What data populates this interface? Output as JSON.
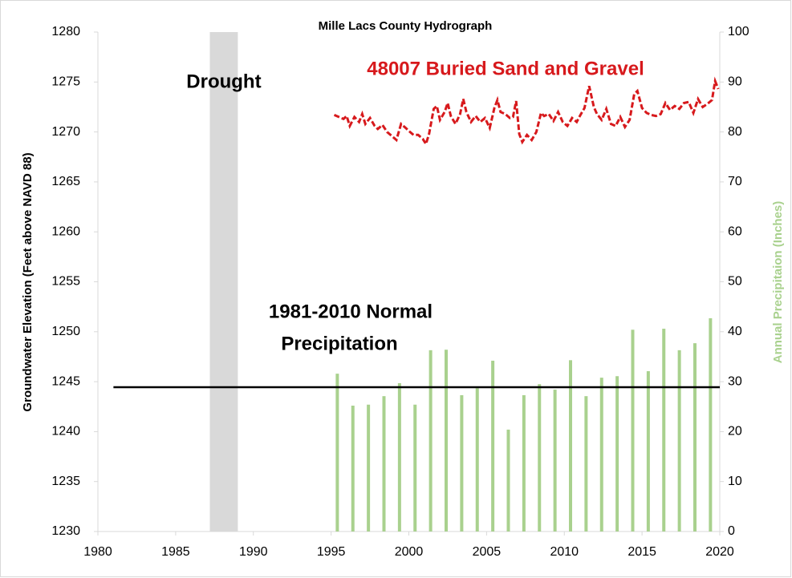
{
  "chart_data": {
    "type": "combo",
    "title": "Mille Lacs County Hydrograph",
    "ylabel": "Groundwater Elevation (Feet above NAVD 88)",
    "y2label": "Annual Precipitaion (Inches)",
    "xlim": [
      1980,
      2020
    ],
    "xticks": [
      1980,
      1985,
      1990,
      1995,
      2000,
      2005,
      2010,
      2015,
      2020
    ],
    "ylim": [
      1230,
      1280
    ],
    "yticks": [
      1230,
      1235,
      1240,
      1245,
      1250,
      1255,
      1260,
      1265,
      1270,
      1275,
      1280
    ],
    "y2lim": [
      0,
      100
    ],
    "y2ticks": [
      0,
      10,
      20,
      30,
      40,
      50,
      60,
      70,
      80,
      90,
      100
    ],
    "grid": false,
    "shaded_regions": [
      {
        "label": "Drought",
        "x": [
          1987.2,
          1989
        ],
        "color": "#d9d9d9"
      }
    ],
    "reference_lines": [
      {
        "label": [
          "1981-2010 Normal",
          "Precipitation"
        ],
        "axis": "y2",
        "value": 28.9,
        "x": [
          1981,
          2020
        ],
        "color": "#000000"
      }
    ],
    "series": [
      {
        "name": "48007 Buried Sand and Gravel",
        "type": "line",
        "dashed": true,
        "color": "#d7191c",
        "x": [
          1995.2,
          1995.5,
          1995.8,
          1996.0,
          1996.2,
          1996.5,
          1996.8,
          1997.0,
          1997.2,
          1997.5,
          1997.8,
          1998.0,
          1998.3,
          1998.6,
          1998.9,
          1999.2,
          1999.5,
          1999.8,
          2000.0,
          2000.3,
          2000.6,
          2000.9,
          2001.1,
          2001.3,
          2001.6,
          2001.8,
          2002.0,
          2002.3,
          2002.5,
          2002.7,
          2003.0,
          2003.3,
          2003.5,
          2003.7,
          2004.0,
          2004.3,
          2004.6,
          2004.9,
          2005.2,
          2005.5,
          2005.7,
          2005.9,
          2006.2,
          2006.5,
          2006.7,
          2006.9,
          2007.1,
          2007.3,
          2007.6,
          2007.9,
          2008.2,
          2008.5,
          2008.7,
          2009.0,
          2009.3,
          2009.6,
          2009.9,
          2010.2,
          2010.5,
          2010.8,
          2011.0,
          2011.3,
          2011.6,
          2011.9,
          2012.1,
          2012.4,
          2012.7,
          2013.0,
          2013.3,
          2013.6,
          2013.9,
          2014.2,
          2014.5,
          2014.7,
          2015.0,
          2015.3,
          2015.6,
          2015.9,
          2016.2,
          2016.5,
          2016.8,
          2017.1,
          2017.4,
          2017.7,
          2018.0,
          2018.3,
          2018.6,
          2018.9,
          2019.2,
          2019.5,
          2019.7,
          2019.9
        ],
        "values": [
          1271.7,
          1271.5,
          1271.3,
          1271.6,
          1270.6,
          1271.5,
          1271.0,
          1271.8,
          1270.8,
          1271.4,
          1270.6,
          1270.3,
          1270.7,
          1270.0,
          1269.6,
          1269.2,
          1270.8,
          1270.4,
          1270.1,
          1269.7,
          1269.7,
          1269.3,
          1268.8,
          1269.8,
          1272.3,
          1272.6,
          1271.2,
          1272.0,
          1272.9,
          1271.6,
          1270.8,
          1271.8,
          1273.3,
          1272.0,
          1271.0,
          1271.6,
          1271.0,
          1271.4,
          1270.4,
          1272.4,
          1273.2,
          1272.0,
          1271.8,
          1271.4,
          1271.5,
          1273.1,
          1269.8,
          1269.0,
          1269.7,
          1269.2,
          1270.0,
          1271.9,
          1271.6,
          1271.8,
          1271.1,
          1272.0,
          1271.0,
          1270.6,
          1271.4,
          1271.0,
          1271.6,
          1272.4,
          1274.6,
          1272.5,
          1271.8,
          1271.2,
          1272.3,
          1270.8,
          1270.6,
          1271.5,
          1270.5,
          1271.2,
          1273.8,
          1274.1,
          1272.4,
          1271.9,
          1271.7,
          1271.6,
          1271.8,
          1272.9,
          1272.2,
          1272.6,
          1272.3,
          1272.9,
          1273.0,
          1271.9,
          1273.3,
          1272.5,
          1272.8,
          1273.2,
          1275.1,
          1274.3
        ]
      },
      {
        "type": "bar",
        "axis": "y2",
        "color": "#a9d18e",
        "x": [
          1995.4,
          1996.4,
          1997.4,
          1998.4,
          1999.4,
          2000.4,
          2001.4,
          2002.4,
          2003.4,
          2004.4,
          2005.4,
          2006.4,
          2007.4,
          2008.4,
          2009.4,
          2010.4,
          2011.4,
          2012.4,
          2013.4,
          2014.4,
          2015.4,
          2016.4,
          2017.4,
          2018.4,
          2019.4
        ],
        "values": [
          31.6,
          25.2,
          25.4,
          27.1,
          29.7,
          25.4,
          36.3,
          36.4,
          27.3,
          28.7,
          34.2,
          20.4,
          27.3,
          29.5,
          28.4,
          34.3,
          27.1,
          30.8,
          31.1,
          40.4,
          32.1,
          40.6,
          36.3,
          37.7,
          42.7
        ]
      }
    ]
  }
}
